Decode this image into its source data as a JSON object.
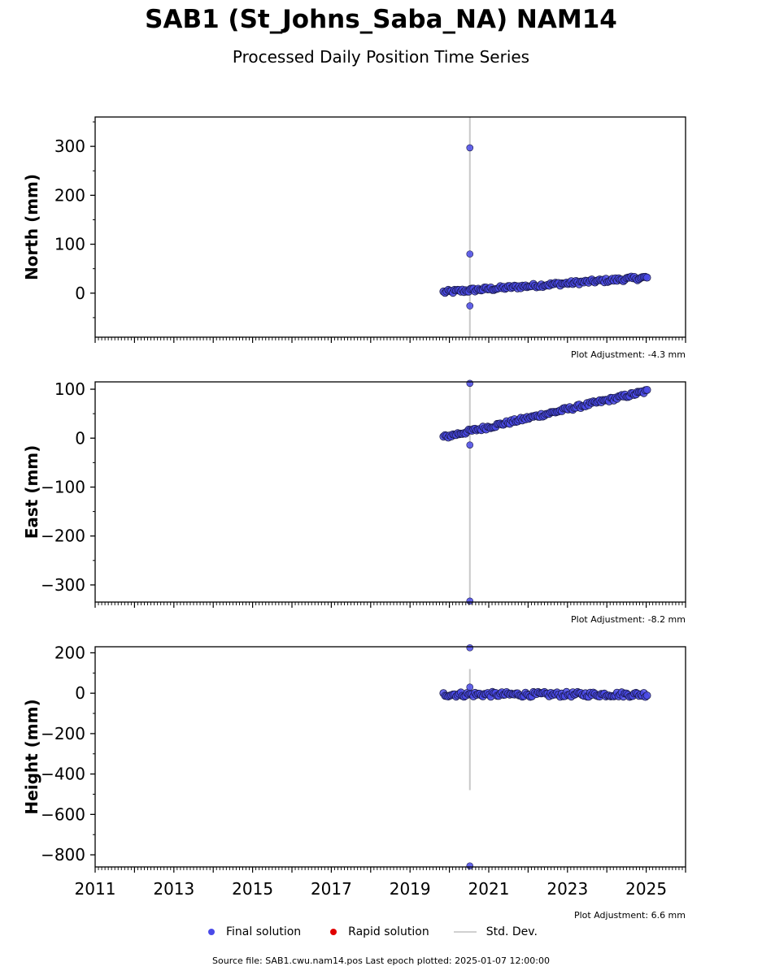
{
  "title": "SAB1 (St_Johns_Saba_NA) NAM14",
  "subtitle": "Processed Daily Position Time Series",
  "colors": {
    "final": "#4a4ae8",
    "final_edge": "#1a1a4a",
    "rapid": "#e00000",
    "stddev": "#c8c8c8"
  },
  "chart_data": [
    {
      "type": "scatter",
      "ylabel": "North (mm)",
      "ylim": [
        -90,
        360
      ],
      "xlim": [
        2011,
        2026
      ],
      "yticks": [
        0,
        100,
        200,
        300
      ],
      "ytick_labels": [
        "0",
        "100",
        "200",
        "300"
      ],
      "adjustment": "Plot Adjustment: -4.3 mm",
      "trend": {
        "start": [
          2019.85,
          2
        ],
        "end": [
          2025.02,
          32
        ],
        "noise": 4
      },
      "outliers": [
        [
          2020.52,
          297
        ],
        [
          2020.52,
          80
        ],
        [
          2020.52,
          -26
        ]
      ],
      "stddev_bar": {
        "x": 2020.52,
        "ymin": -90,
        "ymax": 360
      }
    },
    {
      "type": "scatter",
      "ylabel": "East (mm)",
      "ylim": [
        -335,
        115
      ],
      "xlim": [
        2011,
        2026
      ],
      "yticks": [
        -300,
        -200,
        -100,
        0,
        100
      ],
      "ytick_labels": [
        "−300",
        "−200",
        "−100",
        "0",
        "100"
      ],
      "adjustment": "Plot Adjustment: -8.2 mm",
      "trend": {
        "start": [
          2019.85,
          2
        ],
        "end": [
          2025.02,
          96
        ],
        "noise": 4
      },
      "outliers": [
        [
          2020.52,
          112
        ],
        [
          2020.52,
          -14
        ],
        [
          2020.52,
          -333
        ]
      ],
      "stddev_bar": {
        "x": 2020.52,
        "ymin": -335,
        "ymax": 115
      }
    },
    {
      "type": "scatter",
      "ylabel": "Height (mm)",
      "ylim": [
        -860,
        230
      ],
      "xlim": [
        2011,
        2026
      ],
      "yticks": [
        -800,
        -600,
        -400,
        -200,
        0,
        200
      ],
      "ytick_labels": [
        "−800",
        "−600",
        "−400",
        "−200",
        "0",
        "200"
      ],
      "xticks": [
        2011,
        2013,
        2015,
        2017,
        2019,
        2021,
        2023,
        2025
      ],
      "xtick_labels": [
        "2011",
        "2013",
        "2015",
        "2017",
        "2019",
        "2021",
        "2023",
        "2025"
      ],
      "adjustment": "Plot Adjustment: 6.6 mm",
      "trend": {
        "start": [
          2019.85,
          -6
        ],
        "end": [
          2025.02,
          -6
        ],
        "noise": 12
      },
      "outliers": [
        [
          2020.52,
          225
        ],
        [
          2020.52,
          30
        ],
        [
          2020.52,
          -855
        ]
      ],
      "stddev_bar": {
        "x": 2020.52,
        "ymin": -480,
        "ymax": 120
      }
    }
  ],
  "legend": {
    "final": "Final solution",
    "rapid": "Rapid solution",
    "stddev": "Std. Dev."
  },
  "footer": "Source file: SAB1.cwu.nam14.pos  Last epoch plotted: 2025-01-07 12:00:00"
}
